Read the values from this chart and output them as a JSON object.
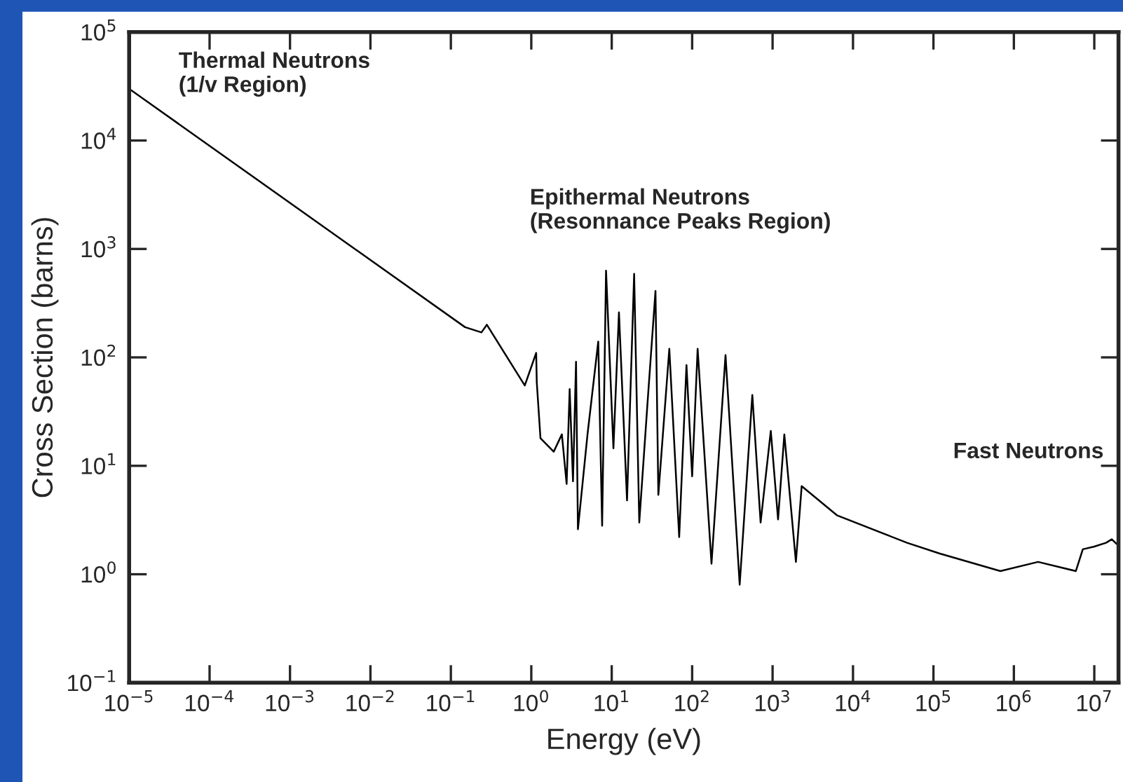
{
  "chart_data": {
    "type": "line",
    "xlabel": "Energy (eV)",
    "ylabel": "Cross Section (barns)",
    "log": "xy",
    "marker": "none",
    "line_style": "solid",
    "annotations": [
      "Thermal Neutrons\n(1/v Region)",
      "Epithermal Neutrons\n(Resonnance Peaks Region)",
      "Fast Neutrons"
    ],
    "xlim": [
      1e-05,
      20000000
    ],
    "ylim": [
      0.1,
      100000
    ],
    "xticks": [
      {
        "value": 1e-05,
        "label": "10$^{−5}$"
      },
      {
        "value": 0.0001,
        "label": "10$^{−4}$"
      },
      {
        "value": 0.001,
        "label": "10$^{−3}$"
      },
      {
        "value": 0.01,
        "label": "10$^{−2}$"
      },
      {
        "value": 0.1,
        "label": "10$^{−1}$"
      },
      {
        "value": 1,
        "label": "10$^{0}$"
      },
      {
        "value": 10,
        "label": "10$^{1}$"
      },
      {
        "value": 100,
        "label": "10$^{2}$"
      },
      {
        "value": 1000,
        "label": "10$^{3}$"
      },
      {
        "value": 10000,
        "label": "10$^{4}$"
      },
      {
        "value": 100000,
        "label": "10$^{5}$"
      },
      {
        "value": 1000000,
        "label": "10$^{6}$"
      },
      {
        "value": 10000000,
        "label": "10$^{7}$"
      }
    ],
    "yticks": [
      {
        "value": 0.1,
        "label": "10$^{−1}$"
      },
      {
        "value": 1,
        "label": "10$^{0}$"
      },
      {
        "value": 10,
        "label": "10$^{1}$"
      },
      {
        "value": 100,
        "label": "10$^{2}$"
      },
      {
        "value": 1000,
        "label": "10$^{3}$"
      },
      {
        "value": 10000,
        "label": "10$^{4}$"
      },
      {
        "value": 100000,
        "label": "10$^{5}$"
      }
    ],
    "series": [
      {
        "color": "#000000",
        "x": [
          1e-05,
          0.15,
          0.24,
          0.28,
          0.83,
          1.15,
          1.17,
          1.3,
          1.9,
          2.4,
          2.75,
          3.0,
          3.3,
          3.6,
          3.8,
          5.0,
          6.8,
          7.6,
          8.5,
          10.5,
          12.3,
          15.5,
          19,
          22,
          28,
          35,
          38,
          52,
          69,
          85,
          100,
          117,
          174,
          260,
          390,
          560,
          710,
          950,
          1170,
          1400,
          1950,
          2300,
          6300,
          47000,
          120000,
          680000,
          2000000,
          5900000,
          7200000,
          10000000,
          14000000,
          16500000,
          19000000
        ],
        "values": [
          30000,
          190,
          170,
          200,
          55,
          110,
          59,
          18,
          13.5,
          19.5,
          6.8,
          51,
          7.2,
          91,
          2.6,
          19.5,
          140,
          2.8,
          630,
          14.5,
          260,
          4.8,
          590,
          3.0,
          40,
          410,
          5.4,
          120,
          2.2,
          85,
          8,
          120,
          1.25,
          105,
          0.8,
          45,
          3.0,
          21,
          3.2,
          19.5,
          1.3,
          6.5,
          3.5,
          1.95,
          1.55,
          1.07,
          1.3,
          1.07,
          1.7,
          1.8,
          1.95,
          2.1,
          1.9
        ]
      }
    ]
  }
}
